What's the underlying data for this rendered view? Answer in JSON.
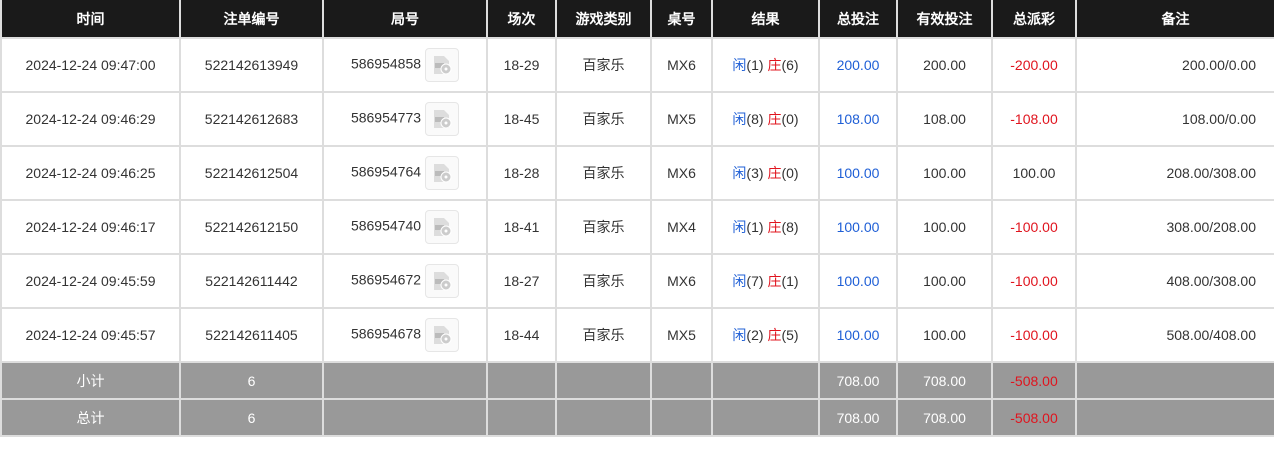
{
  "headers": [
    "时间",
    "注单编号",
    "局号",
    "场次",
    "游戏类别",
    "桌号",
    "结果",
    "总投注",
    "有效投注",
    "总派彩",
    "备注"
  ],
  "colors": {
    "header_bg": "#1a1a1a",
    "player": "#1f5fd6",
    "banker": "#e0141e",
    "summary_bg": "#999999"
  },
  "rows": [
    {
      "time": "2024-12-24 09:47:00",
      "bet_no": "522142613949",
      "round": "586954858",
      "shoe": "18-29",
      "game": "百家乐",
      "table": "MX6",
      "player_label": "闲",
      "player": "(1)",
      "banker_label": "庄",
      "banker": "(6)",
      "total": "200.00",
      "valid": "200.00",
      "payout": "-200.00",
      "payout_negative": true,
      "note": "200.00/0.00"
    },
    {
      "time": "2024-12-24 09:46:29",
      "bet_no": "522142612683",
      "round": "586954773",
      "shoe": "18-45",
      "game": "百家乐",
      "table": "MX5",
      "player_label": "闲",
      "player": "(8)",
      "banker_label": "庄",
      "banker": "(0)",
      "total": "108.00",
      "valid": "108.00",
      "payout": "-108.00",
      "payout_negative": true,
      "note": "108.00/0.00"
    },
    {
      "time": "2024-12-24 09:46:25",
      "bet_no": "522142612504",
      "round": "586954764",
      "shoe": "18-28",
      "game": "百家乐",
      "table": "MX6",
      "player_label": "闲",
      "player": "(3)",
      "banker_label": "庄",
      "banker": "(0)",
      "total": "100.00",
      "valid": "100.00",
      "payout": "100.00",
      "payout_negative": false,
      "note": "208.00/308.00"
    },
    {
      "time": "2024-12-24 09:46:17",
      "bet_no": "522142612150",
      "round": "586954740",
      "shoe": "18-41",
      "game": "百家乐",
      "table": "MX4",
      "player_label": "闲",
      "player": "(1)",
      "banker_label": "庄",
      "banker": "(8)",
      "total": "100.00",
      "valid": "100.00",
      "payout": "-100.00",
      "payout_negative": true,
      "note": "308.00/208.00"
    },
    {
      "time": "2024-12-24 09:45:59",
      "bet_no": "522142611442",
      "round": "586954672",
      "shoe": "18-27",
      "game": "百家乐",
      "table": "MX6",
      "player_label": "闲",
      "player": "(7)",
      "banker_label": "庄",
      "banker": "(1)",
      "total": "100.00",
      "valid": "100.00",
      "payout": "-100.00",
      "payout_negative": true,
      "note": "408.00/308.00"
    },
    {
      "time": "2024-12-24 09:45:57",
      "bet_no": "522142611405",
      "round": "586954678",
      "shoe": "18-44",
      "game": "百家乐",
      "table": "MX5",
      "player_label": "闲",
      "player": "(2)",
      "banker_label": "庄",
      "banker": "(5)",
      "total": "100.00",
      "valid": "100.00",
      "payout": "-100.00",
      "payout_negative": true,
      "note": "508.00/408.00"
    }
  ],
  "summary": [
    {
      "label": "小计",
      "count": "6",
      "total": "708.00",
      "valid": "708.00",
      "payout": "-508.00"
    },
    {
      "label": "总计",
      "count": "6",
      "total": "708.00",
      "valid": "708.00",
      "payout": "-508.00"
    }
  ]
}
